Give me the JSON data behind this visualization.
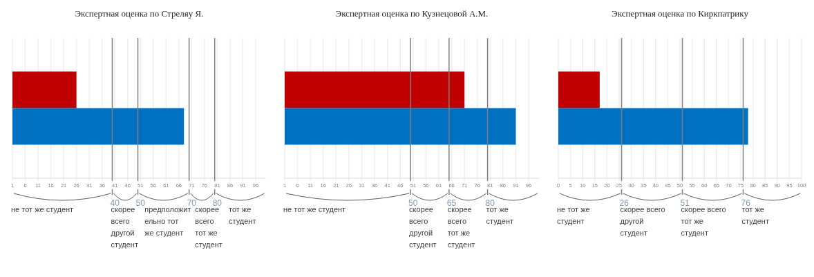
{
  "chart_data": [
    {
      "type": "bar",
      "orientation": "horizontal",
      "title": "Экспертная оценка по Стреляу Я.",
      "categories": [
        null,
        null
      ],
      "values": [
        26,
        68
      ],
      "colors": [
        "#c00000",
        "#0070c0"
      ],
      "xlim": [
        1,
        100
      ],
      "xticks": [
        1,
        6,
        11,
        16,
        21,
        26,
        31,
        36,
        41,
        46,
        51,
        56,
        61,
        66,
        71,
        76,
        81,
        86,
        91,
        96
      ],
      "grid": "x",
      "tick_labels": "x",
      "ref_lines": [
        {
          "axis": "x",
          "value": 40,
          "label": "40",
          "color": "#7f7f7f"
        },
        {
          "axis": "x",
          "value": 50,
          "label": "50",
          "color": "#7f7f7f"
        },
        {
          "axis": "x",
          "value": 70,
          "label": "70",
          "color": "#7f7f7f"
        },
        {
          "axis": "x",
          "value": 80,
          "label": "80",
          "color": "#7f7f7f"
        }
      ],
      "annotations": [
        "не тот же студент",
        "скорее всего другой студент",
        "предположительно тот же студент",
        "скорее всего тот же студент",
        "тот же студент"
      ]
    },
    {
      "type": "bar",
      "orientation": "horizontal",
      "title": "Экспертная оценка по Кузнецовой А.М.",
      "categories": [
        null,
        null
      ],
      "values": [
        71,
        91
      ],
      "colors": [
        "#c00000",
        "#0070c0"
      ],
      "xlim": [
        1,
        100
      ],
      "xticks": [
        1,
        6,
        11,
        16,
        21,
        26,
        31,
        36,
        41,
        46,
        51,
        56,
        61,
        66,
        71,
        76,
        81,
        86,
        91,
        96
      ],
      "grid": "x",
      "tick_labels": "x",
      "ref_lines": [
        {
          "axis": "x",
          "value": 50,
          "label": "50",
          "color": "#7f7f7f"
        },
        {
          "axis": "x",
          "value": 65,
          "label": "65",
          "color": "#7f7f7f"
        },
        {
          "axis": "x",
          "value": 80,
          "label": "80",
          "color": "#7f7f7f"
        }
      ],
      "annotations": [
        "не тот же студент",
        "скорее всего другой студент",
        "скорее всего тот же студент",
        "тот же студент"
      ]
    },
    {
      "type": "bar",
      "orientation": "horizontal",
      "title": "Экспертная оценка по Киркпатрику",
      "categories": [
        null,
        null
      ],
      "values": [
        17,
        78
      ],
      "colors": [
        "#c00000",
        "#0070c0"
      ],
      "xlim": [
        0,
        100
      ],
      "xticks": [
        0,
        5,
        10,
        15,
        20,
        25,
        30,
        35,
        40,
        45,
        50,
        55,
        60,
        65,
        70,
        75,
        80,
        85,
        90,
        95,
        100
      ],
      "grid": "x",
      "tick_labels": "x",
      "ref_lines": [
        {
          "axis": "x",
          "value": 26,
          "label": "26",
          "color": "#7f7f7f"
        },
        {
          "axis": "x",
          "value": 51,
          "label": "51",
          "color": "#7f7f7f"
        },
        {
          "axis": "x",
          "value": 76,
          "label": "76",
          "color": "#7f7f7f"
        }
      ],
      "annotations": [
        "не тот же студент",
        "скорее всего другой студент",
        "скорее всего тот же студент",
        "тот же студент"
      ]
    }
  ]
}
